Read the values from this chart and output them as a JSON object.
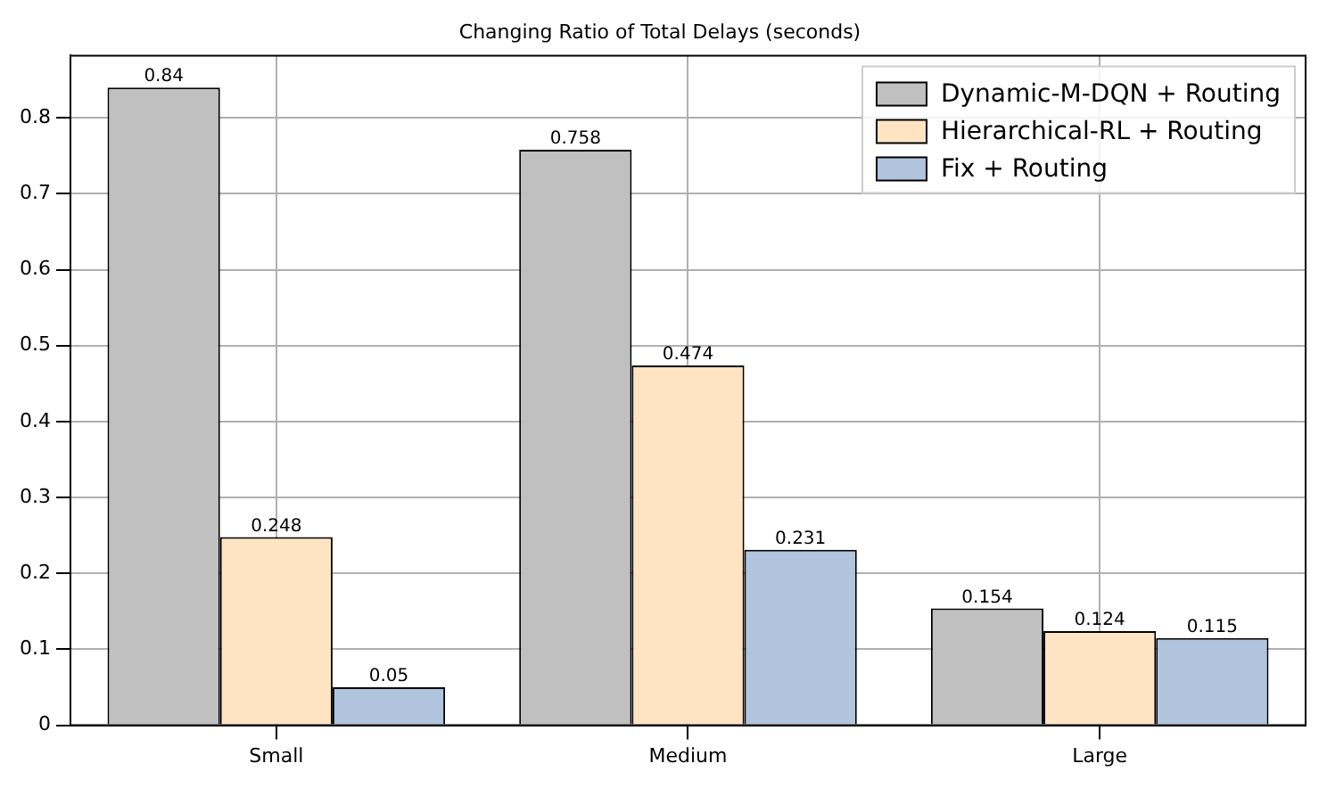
{
  "chart_data": {
    "type": "bar",
    "title": "Changing Ratio of Total Delays (seconds)",
    "categories": [
      "Small",
      "Medium",
      "Large"
    ],
    "series": [
      {
        "name": "Dynamic-M-DQN + Routing",
        "color": "#c0c0c0",
        "values": [
          0.84,
          0.758,
          0.154
        ]
      },
      {
        "name": "Hierarchical-RL + Routing",
        "color": "#ffe4c4",
        "values": [
          0.248,
          0.474,
          0.124
        ]
      },
      {
        "name": "Fix + Routing",
        "color": "#b0c4de",
        "values": [
          0.05,
          0.231,
          0.115
        ]
      }
    ],
    "ylim": [
      0,
      0.882
    ],
    "yticks": [
      0,
      0.1,
      0.2,
      0.3,
      0.4,
      0.5,
      0.6,
      0.7,
      0.8
    ],
    "grid": true,
    "legend": "top right",
    "data_labels": true
  }
}
